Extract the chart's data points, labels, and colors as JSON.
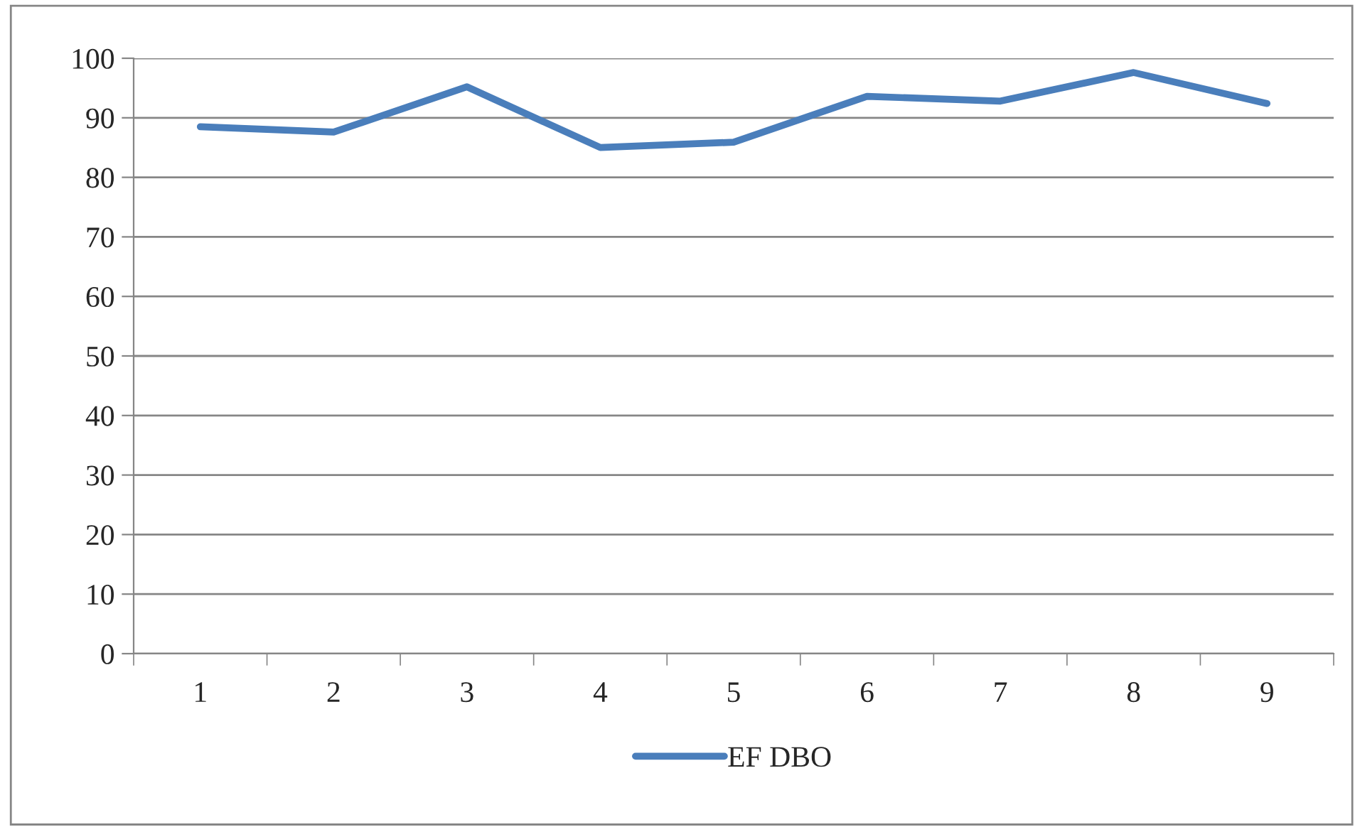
{
  "chart_data": {
    "type": "line",
    "categories": [
      "1",
      "2",
      "3",
      "4",
      "5",
      "6",
      "7",
      "8",
      "9"
    ],
    "series": [
      {
        "name": "EF DBO",
        "color": "#4a7ebb",
        "values": [
          88.5,
          87.6,
          95.2,
          85.0,
          85.9,
          93.6,
          92.8,
          97.6,
          92.4
        ]
      }
    ],
    "ylim": [
      0,
      100
    ],
    "yticks": [
      0,
      10,
      20,
      30,
      40,
      50,
      60,
      70,
      80,
      90,
      100
    ],
    "grid": "y",
    "legend": "bottom",
    "marker": "none",
    "line_style": "solid"
  }
}
